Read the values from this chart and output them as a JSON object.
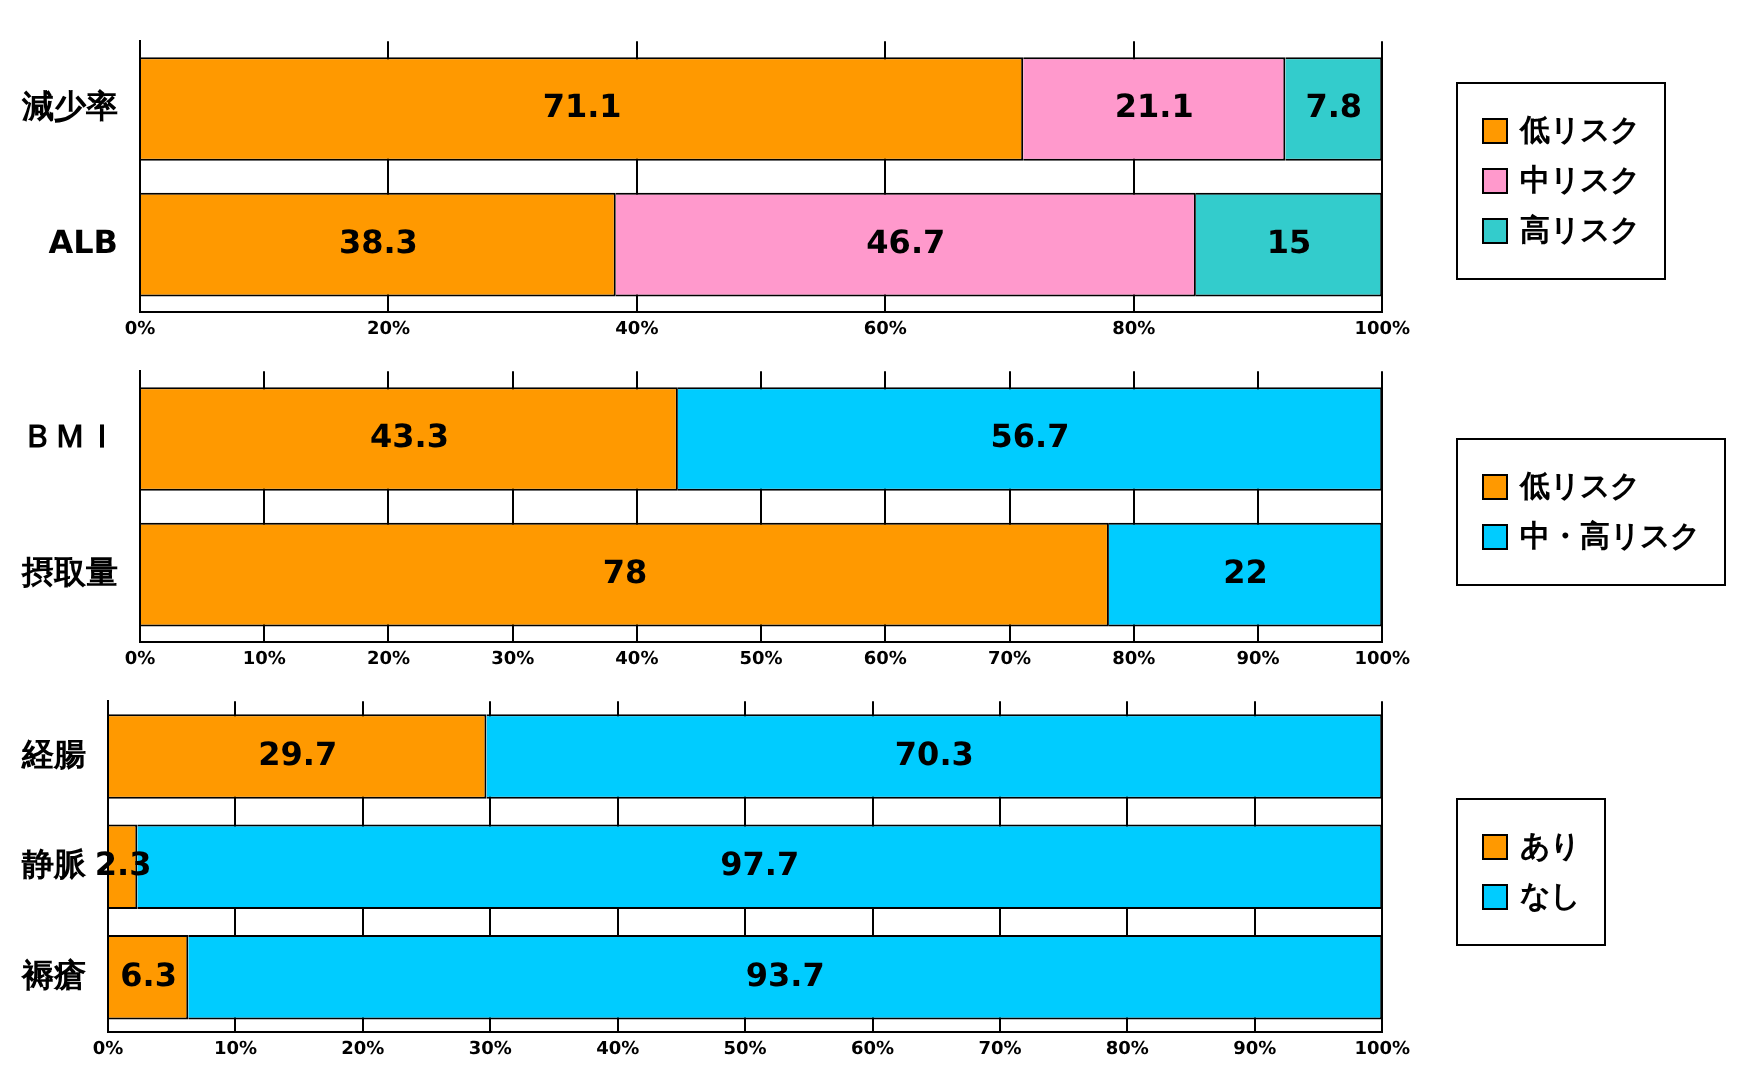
{
  "chart_data": [
    {
      "type": "bar",
      "orientation": "horizontal",
      "stacked": true,
      "categories": [
        "減少率",
        "ALB"
      ],
      "series": [
        {
          "name": "低リスク",
          "color": "#ff9900",
          "values": [
            71.1,
            38.3
          ]
        },
        {
          "name": "中リスク",
          "color": "#ff99cc",
          "values": [
            21.1,
            46.7
          ]
        },
        {
          "name": "高リスク",
          "color": "#33cccc",
          "values": [
            7.8,
            15
          ]
        }
      ],
      "xlim": [
        0,
        100
      ],
      "xticks": [
        {
          "value": 0,
          "label": "0%"
        },
        {
          "value": 20,
          "label": "20%"
        },
        {
          "value": 40,
          "label": "40%"
        },
        {
          "value": 60,
          "label": "60%"
        },
        {
          "value": 80,
          "label": "80%"
        },
        {
          "value": 100,
          "label": "100%"
        }
      ],
      "grid": "x",
      "legend": "right",
      "data_labels": true
    },
    {
      "type": "bar",
      "orientation": "horizontal",
      "stacked": true,
      "categories": [
        "ＢＭＩ",
        "摂取量"
      ],
      "series": [
        {
          "name": "低リスク",
          "color": "#ff9900",
          "values": [
            43.3,
            78
          ]
        },
        {
          "name": "中・高リスク",
          "color": "#00ccff",
          "values": [
            56.7,
            22
          ]
        }
      ],
      "xlim": [
        0,
        100
      ],
      "xticks": [
        {
          "value": 0,
          "label": "0%"
        },
        {
          "value": 10,
          "label": "10%"
        },
        {
          "value": 20,
          "label": "20%"
        },
        {
          "value": 30,
          "label": "30%"
        },
        {
          "value": 40,
          "label": "40%"
        },
        {
          "value": 50,
          "label": "50%"
        },
        {
          "value": 60,
          "label": "60%"
        },
        {
          "value": 70,
          "label": "70%"
        },
        {
          "value": 80,
          "label": "80%"
        },
        {
          "value": 90,
          "label": "90%"
        },
        {
          "value": 100,
          "label": "100%"
        }
      ],
      "grid": "x",
      "legend": "right",
      "data_labels": true
    },
    {
      "type": "bar",
      "orientation": "horizontal",
      "stacked": true,
      "categories": [
        "経腸",
        "静脈",
        "褥瘡"
      ],
      "series": [
        {
          "name": "あり",
          "color": "#ff9900",
          "values": [
            29.7,
            2.3,
            6.3
          ]
        },
        {
          "name": "なし",
          "color": "#00ccff",
          "values": [
            70.3,
            97.7,
            93.7
          ]
        }
      ],
      "xlim": [
        0,
        100
      ],
      "xticks": [
        {
          "value": 0,
          "label": "0%"
        },
        {
          "value": 10,
          "label": "10%"
        },
        {
          "value": 20,
          "label": "20%"
        },
        {
          "value": 30,
          "label": "30%"
        },
        {
          "value": 40,
          "label": "40%"
        },
        {
          "value": 50,
          "label": "50%"
        },
        {
          "value": 60,
          "label": "60%"
        },
        {
          "value": 70,
          "label": "70%"
        },
        {
          "value": 80,
          "label": "80%"
        },
        {
          "value": 90,
          "label": "90%"
        },
        {
          "value": 100,
          "label": "100%"
        }
      ],
      "grid": "x",
      "legend": "right",
      "data_labels": true
    }
  ]
}
